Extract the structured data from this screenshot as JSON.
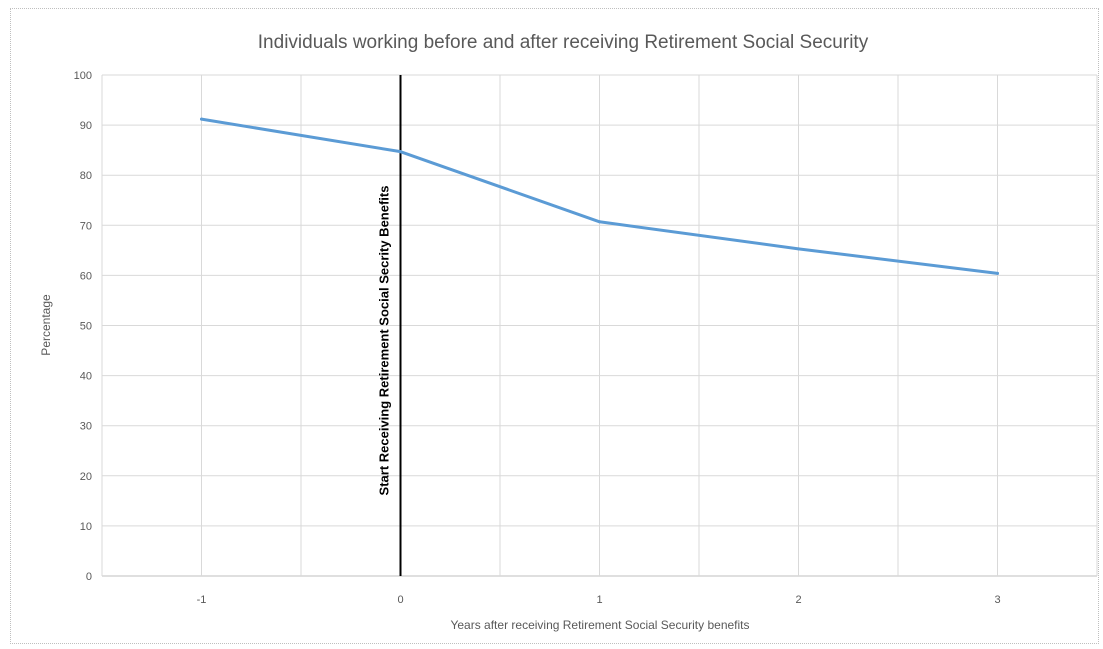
{
  "chart_data": {
    "type": "line",
    "title": "Individuals working before and after receiving Retirement Social Security",
    "xlabel": "Years after  receiving Retirement  Social Security benefits",
    "ylabel": "Percentage",
    "x": [
      -1,
      0,
      1,
      2,
      3
    ],
    "xlim": [
      -1.5,
      3.5
    ],
    "ylim": [
      0,
      100
    ],
    "x_ticks": [
      "-1",
      "0",
      "1",
      "2",
      "3"
    ],
    "y_ticks": [
      "0",
      "10",
      "20",
      "30",
      "40",
      "50",
      "60",
      "70",
      "80",
      "90",
      "100"
    ],
    "series": [
      {
        "values": [
          91.2,
          84.7,
          70.7,
          65.3,
          60.4
        ],
        "color": "#5b9bd5"
      }
    ],
    "vertical_marker": {
      "x": 0,
      "label": "Start Receiving Retirement Social Secrity Benefits",
      "color": "#000000"
    },
    "grid": true,
    "legend": "none",
    "colors": {
      "grid": "#d9d9d9",
      "text": "#595959",
      "frame": "#bfbfbf"
    }
  }
}
